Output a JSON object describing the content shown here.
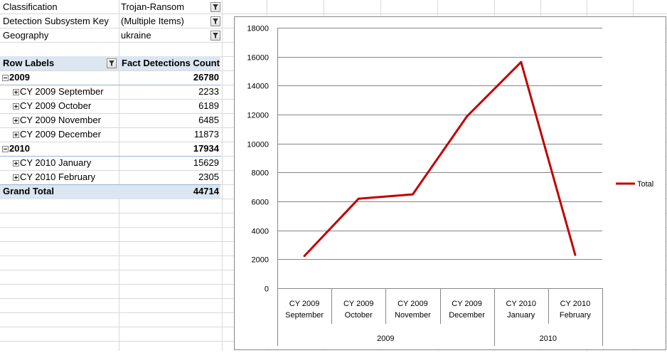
{
  "filters": [
    {
      "label": "Classification",
      "value": "Trojan-Ransom"
    },
    {
      "label": "Detection Subsystem Key",
      "value": "(Multiple Items)"
    },
    {
      "label": "Geography",
      "value": "ukraine"
    }
  ],
  "pivot": {
    "row_labels_header": "Row Labels",
    "value_header": "Fact Detections Count",
    "groups": [
      {
        "label": "2009",
        "total": "26780",
        "items": [
          {
            "label": "CY 2009 September",
            "value": "2233"
          },
          {
            "label": "CY 2009 October",
            "value": "6189"
          },
          {
            "label": "CY 2009 November",
            "value": "6485"
          },
          {
            "label": "CY 2009 December",
            "value": "11873"
          }
        ]
      },
      {
        "label": "2010",
        "total": "17934",
        "items": [
          {
            "label": "CY 2010 January",
            "value": "15629"
          },
          {
            "label": "CY 2010 February",
            "value": "2305"
          }
        ]
      }
    ],
    "grand_total_label": "Grand Total",
    "grand_total_value": "44714"
  },
  "chart_data": {
    "type": "line",
    "categories": [
      [
        "CY 2009",
        "September"
      ],
      [
        "CY 2009",
        "October"
      ],
      [
        "CY 2009",
        "November"
      ],
      [
        "CY 2009",
        "December"
      ],
      [
        "CY 2010",
        "January"
      ],
      [
        "CY 2010",
        "February"
      ]
    ],
    "category_groups": [
      {
        "label": "2009",
        "count": 4
      },
      {
        "label": "2010",
        "count": 2
      }
    ],
    "series": [
      {
        "name": "Total",
        "color": "#c00000",
        "values": [
          2233,
          6189,
          6485,
          11873,
          15629,
          2305
        ]
      }
    ],
    "ylim": [
      0,
      18000
    ],
    "yticks": [
      0,
      2000,
      4000,
      6000,
      8000,
      10000,
      12000,
      14000,
      16000,
      18000
    ],
    "grid": true,
    "legend_position": "right"
  }
}
